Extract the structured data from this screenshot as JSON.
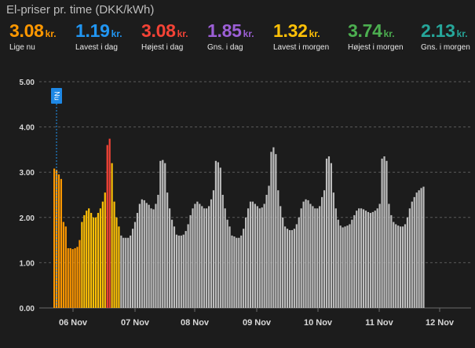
{
  "card": {
    "title": "El-priser pr. time (DKK/kWh)"
  },
  "stats": [
    {
      "value": "3.08",
      "unit": "kr.",
      "label": "Lige nu",
      "color": "#ff9800"
    },
    {
      "value": "1.19",
      "unit": "kr.",
      "label": "Lavest i dag",
      "color": "#2196f3"
    },
    {
      "value": "3.08",
      "unit": "kr.",
      "label": "Højest i dag",
      "color": "#f44336"
    },
    {
      "value": "1.85",
      "unit": "kr.",
      "label": "Gns. i dag",
      "color": "#9c5fd6"
    },
    {
      "value": "1.32",
      "unit": "kr.",
      "label": "Lavest i morgen",
      "color": "#ffc107"
    },
    {
      "value": "3.74",
      "unit": "kr.",
      "label": "Højest i morgen",
      "color": "#4caf50"
    },
    {
      "value": "2.13",
      "unit": "kr.",
      "label": "Gns. i morgen",
      "color": "#26a69a"
    }
  ],
  "chart_data": {
    "type": "bar",
    "ylim": [
      0,
      5
    ],
    "yticks": [
      "0.00",
      "1.00",
      "2.00",
      "3.00",
      "4.00",
      "5.00"
    ],
    "xticks": [
      "06 Nov",
      "07 Nov",
      "08 Nov",
      "09 Nov",
      "10 Nov",
      "11 Nov",
      "12 Nov"
    ],
    "now_marker": "Nu",
    "colors": {
      "today": "#ff9800",
      "cheap": "#4caf50",
      "tomorrow": "#ffc107",
      "peak": "#f44336",
      "forecast": "#bdbdbd"
    },
    "series": [
      {
        "day": "06 Nov",
        "kind": "today",
        "values": [
          3.08,
          3.05,
          2.95,
          2.85,
          1.9,
          1.8,
          1.32,
          1.32,
          1.3,
          1.32,
          1.35,
          1.5
        ]
      },
      {
        "day": "07 Nov",
        "kind": "tomorrow",
        "values": [
          1.9,
          2.05,
          2.15,
          2.2,
          2.1,
          2.0,
          2.0,
          2.1,
          2.2,
          2.35,
          2.55,
          3.6,
          3.74,
          3.2,
          2.35,
          2.0,
          1.8
        ]
      },
      {
        "day": "07 Nov",
        "kind": "forecast",
        "values": [
          1.6,
          1.55,
          1.55,
          1.55,
          1.6,
          1.75,
          1.9,
          2.1,
          2.3,
          2.4,
          2.38,
          2.32,
          2.28,
          2.2,
          2.18,
          2.3,
          2.5,
          3.25,
          3.27,
          3.2,
          2.55,
          2.2,
          1.95,
          1.8
        ]
      },
      {
        "day": "08 Nov",
        "kind": "forecast",
        "values": [
          1.62,
          1.6,
          1.6,
          1.62,
          1.7,
          1.85,
          2.05,
          2.2,
          2.3,
          2.35,
          2.3,
          2.25,
          2.2,
          2.2,
          2.25,
          2.4,
          2.6,
          3.25,
          3.22,
          3.1,
          2.5,
          2.2,
          1.95,
          1.8
        ]
      },
      {
        "day": "09 Nov",
        "kind": "forecast",
        "values": [
          1.6,
          1.58,
          1.55,
          1.55,
          1.6,
          1.75,
          2.0,
          2.2,
          2.35,
          2.35,
          2.3,
          2.25,
          2.2,
          2.22,
          2.3,
          2.5,
          2.7,
          3.45,
          3.55,
          3.4,
          2.6,
          2.25,
          2.0,
          1.8
        ]
      },
      {
        "day": "10 Nov",
        "kind": "forecast",
        "values": [
          1.75,
          1.72,
          1.72,
          1.75,
          1.85,
          2.0,
          2.2,
          2.35,
          2.4,
          2.38,
          2.3,
          2.25,
          2.2,
          2.2,
          2.25,
          2.45,
          2.6,
          3.3,
          3.35,
          3.2,
          2.55,
          2.2,
          1.95,
          1.82
        ]
      },
      {
        "day": "11 Nov",
        "kind": "forecast",
        "values": [
          1.78,
          1.8,
          1.82,
          1.85,
          1.95,
          2.05,
          2.15,
          2.2,
          2.2,
          2.18,
          2.15,
          2.12,
          2.1,
          2.12,
          2.15,
          2.2,
          2.3,
          3.3,
          3.35,
          3.25,
          2.3,
          2.05,
          1.9,
          1.85
        ]
      },
      {
        "day": "12 Nov",
        "kind": "forecast",
        "values": [
          1.82,
          1.8,
          1.8,
          1.85,
          2.0,
          2.2,
          2.35,
          2.45,
          2.55,
          2.6,
          2.65,
          2.68
        ]
      }
    ]
  }
}
